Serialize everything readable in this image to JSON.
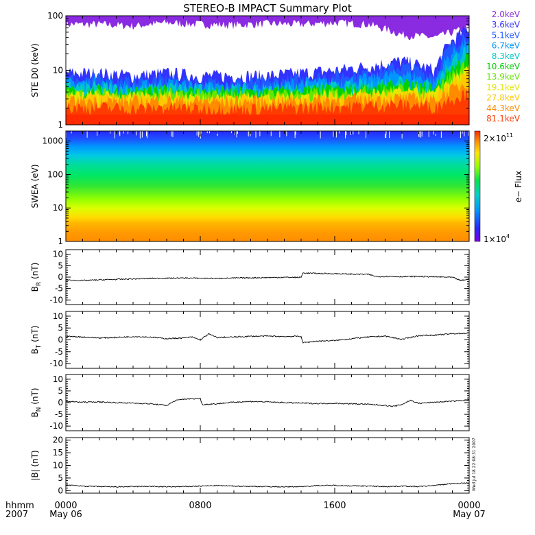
{
  "title": "STEREO-B IMPACT Summary Plot",
  "stamp": "Wed Jul 18 22:08:31 2007",
  "time_axis": {
    "label_top": "hhmm",
    "label_bottom": "2007",
    "ticks": [
      {
        "hour": 0,
        "label": "0000",
        "date": "May 06"
      },
      {
        "hour": 8,
        "label": "0800",
        "date": ""
      },
      {
        "hour": 16,
        "label": "1600",
        "date": ""
      },
      {
        "hour": 24,
        "label": "0000",
        "date": "May 07"
      }
    ],
    "range_hours": [
      0,
      24
    ]
  },
  "chart_data": [
    {
      "id": "ste",
      "type": "line",
      "ylabel": "STE D0 (keV)",
      "yscale": "log",
      "ylim": [
        1,
        100
      ],
      "ytick_labels": [
        "1",
        "10",
        "100"
      ],
      "ytick_values": [
        1,
        10,
        100
      ],
      "series": [
        {
          "name": "2.0keV",
          "color": "#8a2be2",
          "level": [
            70,
            70,
            65,
            75,
            70,
            68,
            72,
            70,
            75,
            70,
            45,
            40,
            60
          ]
        },
        {
          "name": "3.6keV",
          "color": "#3232ff",
          "level": [
            9,
            9,
            8,
            9,
            8,
            8,
            8,
            9,
            10,
            12,
            15,
            10,
            60
          ]
        },
        {
          "name": "5.1keV",
          "color": "#1e5aff",
          "level": [
            7,
            7,
            6,
            7,
            6,
            6,
            6,
            7,
            8,
            9,
            12,
            8,
            50
          ]
        },
        {
          "name": "6.7keV",
          "color": "#0096ff",
          "level": [
            6,
            6,
            5,
            6,
            5,
            5,
            5,
            6,
            6,
            7,
            9,
            6,
            35
          ]
        },
        {
          "name": "8.3keV",
          "color": "#00c8c8",
          "level": [
            5,
            5,
            4.5,
            5,
            4.5,
            4.5,
            4.5,
            5,
            5,
            5.5,
            7,
            5,
            25
          ]
        },
        {
          "name": "10.6keV",
          "color": "#00d200",
          "level": [
            4.3,
            4.3,
            4,
            4.3,
            4,
            4,
            4,
            4.3,
            4.4,
            4.8,
            5.5,
            4.5,
            18
          ]
        },
        {
          "name": "13.9keV",
          "color": "#64e600",
          "level": [
            3.8,
            3.8,
            3.6,
            3.8,
            3.6,
            3.6,
            3.6,
            3.8,
            3.9,
            4.2,
            4.6,
            4,
            13
          ]
        },
        {
          "name": "19.1keV",
          "color": "#e6e600",
          "level": [
            3.4,
            3.4,
            3.2,
            3.4,
            3.2,
            3.2,
            3.2,
            3.4,
            3.5,
            3.7,
            4,
            3.6,
            10
          ]
        },
        {
          "name": "27.8keV",
          "color": "#ffc800",
          "level": [
            3.1,
            3.1,
            3,
            3.1,
            3,
            3,
            3,
            3.1,
            3.2,
            3.3,
            3.5,
            3.2,
            8
          ]
        },
        {
          "name": "44.3keV",
          "color": "#ff8c00",
          "level": [
            2.8,
            2.8,
            2.7,
            2.8,
            2.7,
            2.7,
            2.7,
            2.8,
            2.9,
            3,
            3.1,
            2.9,
            6
          ]
        },
        {
          "name": "81.1keV",
          "color": "#ff3c00",
          "level": [
            2.1,
            2.1,
            2,
            2.1,
            2,
            2,
            2,
            2.1,
            2.2,
            2.3,
            2.4,
            2.2,
            4
          ]
        }
      ]
    },
    {
      "id": "swea",
      "type": "heatmap",
      "ylabel": "SWEA (eV)",
      "yscale": "log",
      "ylim": [
        1,
        2000
      ],
      "ytick_labels": [
        "1",
        "10",
        "100",
        "1000"
      ],
      "ytick_values": [
        1,
        10,
        100,
        1000
      ],
      "colorbar": {
        "label": "e− Flux",
        "max_label": "2×10",
        "max_exp": "11",
        "min_label": "1×10",
        "min_exp": "4",
        "range": [
          10000,
          200000000000
        ]
      }
    },
    {
      "id": "br",
      "type": "line",
      "ylabel_main": "B",
      "ylabel_sub": "R",
      "ylabel_unit": " (nT)",
      "ylim": [
        -12,
        12
      ],
      "ytick_labels": [
        "-10",
        "-5",
        "0",
        "5",
        "10"
      ],
      "ytick_values": [
        -10,
        -5,
        0,
        5,
        10
      ],
      "series": [
        {
          "x": [
            0,
            1,
            2,
            3,
            4,
            5,
            6,
            7,
            8,
            9,
            10,
            11,
            12,
            13,
            14,
            14.1,
            15,
            16,
            17,
            18,
            18.5,
            19,
            20,
            21,
            22,
            23,
            23.5,
            24
          ],
          "y": [
            -1.3,
            -1.5,
            -1.2,
            -1,
            -0.8,
            -0.6,
            -0.5,
            -0.4,
            -0.5,
            -0.6,
            -0.4,
            -0.3,
            -0.2,
            -0.1,
            -0.1,
            1.8,
            1.6,
            1.5,
            1.3,
            1.2,
            0.2,
            0.3,
            0.2,
            0.3,
            0.1,
            -0.1,
            -1.5,
            -0.8
          ]
        }
      ]
    },
    {
      "id": "bt",
      "type": "line",
      "ylabel_main": "B",
      "ylabel_sub": "T",
      "ylabel_unit": " (nT)",
      "ylim": [
        -12,
        12
      ],
      "ytick_labels": [
        "-10",
        "-5",
        "0",
        "5",
        "10"
      ],
      "ytick_values": [
        -10,
        -5,
        0,
        5,
        10
      ],
      "series": [
        {
          "x": [
            0,
            1,
            2,
            3,
            4,
            5,
            6,
            7,
            7.5,
            8,
            8.5,
            9,
            10,
            11,
            12,
            13,
            14,
            14.1,
            15,
            16,
            17,
            18,
            19,
            20,
            21,
            22,
            23,
            24
          ],
          "y": [
            1.5,
            1.2,
            0.8,
            1,
            1.4,
            1.2,
            0.5,
            0.8,
            1.2,
            0,
            2.5,
            1,
            1.2,
            1.5,
            1.6,
            1.4,
            1.5,
            -1.2,
            -0.5,
            -0.3,
            0.5,
            1.2,
            1.6,
            0.2,
            1.8,
            2,
            2.6,
            2.8
          ]
        }
      ]
    },
    {
      "id": "bn",
      "type": "line",
      "ylabel_main": "B",
      "ylabel_sub": "N",
      "ylabel_unit": " (nT)",
      "ylim": [
        -12,
        12
      ],
      "ytick_labels": [
        "-10",
        "-5",
        "0",
        "5",
        "10"
      ],
      "ytick_values": [
        -10,
        -5,
        0,
        5,
        10
      ],
      "series": [
        {
          "x": [
            0,
            1,
            2,
            3,
            4,
            5,
            6,
            6.5,
            7,
            8,
            8.1,
            9,
            10,
            11,
            12,
            13,
            14,
            15,
            16,
            17,
            18,
            19,
            19.5,
            20,
            20.5,
            21,
            22,
            23,
            24
          ],
          "y": [
            0.5,
            0.2,
            0.3,
            0,
            -0.2,
            -0.5,
            -1.2,
            0.8,
            1.5,
            1.8,
            -0.8,
            -0.5,
            0.2,
            0.5,
            0.3,
            0,
            -0.2,
            -0.4,
            -0.3,
            -0.5,
            -0.7,
            -1.2,
            -1.6,
            -0.8,
            1,
            -0.3,
            0.2,
            0.6,
            1.2
          ]
        }
      ]
    },
    {
      "id": "bmag",
      "type": "line",
      "ylabel_main": "|B|",
      "ylabel_sub": "",
      "ylabel_unit": " (nT)",
      "ylim": [
        -1,
        21
      ],
      "ytick_labels": [
        "0",
        "5",
        "10",
        "15",
        "20"
      ],
      "ytick_values": [
        0,
        5,
        10,
        15,
        20
      ],
      "series": [
        {
          "x": [
            0,
            1,
            2,
            3,
            4,
            5,
            6,
            7,
            8,
            9,
            10,
            11,
            12,
            13,
            14,
            15,
            16,
            17,
            18,
            19,
            20,
            21,
            22,
            23,
            24
          ],
          "y": [
            2.2,
            1.8,
            1.6,
            1.5,
            1.6,
            1.7,
            1.5,
            1.6,
            1.8,
            2,
            1.8,
            1.7,
            1.6,
            1.5,
            1.6,
            2,
            2.1,
            1.9,
            1.8,
            1.6,
            1.8,
            1.6,
            2.1,
            2.8,
            3
          ]
        }
      ]
    }
  ]
}
